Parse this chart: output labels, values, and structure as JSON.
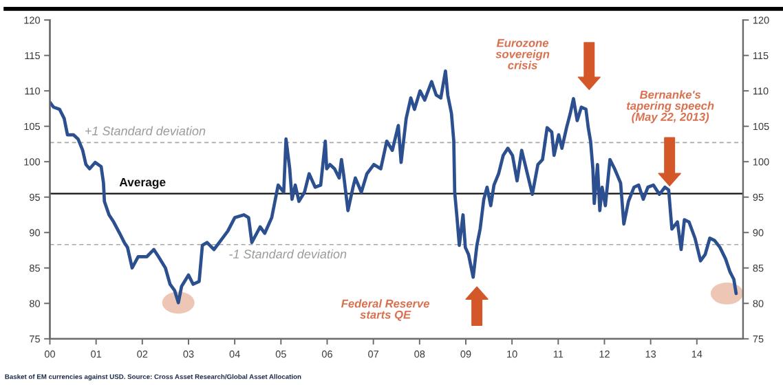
{
  "chart_data": {
    "type": "line",
    "x": [
      2000.0,
      2000.08,
      2000.21,
      2000.31,
      2000.38,
      2000.51,
      2000.61,
      2000.71,
      2000.78,
      2000.86,
      2000.98,
      2001.11,
      2001.16,
      2001.18,
      2001.28,
      2001.38,
      2001.51,
      2001.61,
      2001.68,
      2001.78,
      2001.91,
      2002.1,
      2002.25,
      2002.35,
      2002.5,
      2002.6,
      2002.7,
      2002.78,
      2002.85,
      2003.0,
      2003.1,
      2003.23,
      2003.3,
      2003.4,
      2003.55,
      2003.7,
      2003.85,
      2004.0,
      2004.2,
      2004.3,
      2004.37,
      2004.55,
      2004.65,
      2004.8,
      2004.94,
      2005.06,
      2005.11,
      2005.19,
      2005.24,
      2005.31,
      2005.39,
      2005.51,
      2005.61,
      2005.74,
      2005.86,
      2005.96,
      2005.99,
      2006.06,
      2006.16,
      2006.26,
      2006.31,
      2006.36,
      2006.45,
      2006.56,
      2006.61,
      2006.74,
      2006.86,
      2007.01,
      2007.16,
      2007.29,
      2007.41,
      2007.54,
      2007.6,
      2007.71,
      2007.81,
      2007.89,
      2008.01,
      2008.11,
      2008.26,
      2008.36,
      2008.46,
      2008.56,
      2008.61,
      2008.69,
      2008.74,
      2008.76,
      2008.81,
      2008.86,
      2008.94,
      2008.99,
      2009.06,
      2009.16,
      2009.24,
      2009.31,
      2009.39,
      2009.46,
      2009.54,
      2009.61,
      2009.71,
      2009.81,
      2009.91,
      2010.01,
      2010.11,
      2010.21,
      2010.44,
      2010.56,
      2010.66,
      2010.76,
      2010.86,
      2010.91,
      2011.01,
      2011.08,
      2011.18,
      2011.26,
      2011.33,
      2011.41,
      2011.5,
      2011.6,
      2011.65,
      2011.7,
      2011.75,
      2011.78,
      2011.85,
      2011.9,
      2011.95,
      2012.02,
      2012.12,
      2012.22,
      2012.35,
      2012.42,
      2012.52,
      2012.64,
      2012.74,
      2012.84,
      2012.94,
      2013.06,
      2013.19,
      2013.31,
      2013.39,
      2013.46,
      2013.58,
      2013.66,
      2013.73,
      2013.83,
      2013.96,
      2014.08,
      2014.18,
      2014.28,
      2014.38,
      2014.5,
      2014.62,
      2014.72,
      2014.8,
      2014.85
    ],
    "series": [
      {
        "color": "#2b4f8f",
        "values": [
          108.4,
          107.7,
          107.4,
          106.1,
          103.8,
          103.8,
          103.2,
          101.6,
          99.6,
          99.0,
          99.9,
          99.3,
          97.0,
          94.4,
          92.5,
          91.5,
          89.9,
          88.6,
          87.9,
          85.0,
          86.6,
          86.6,
          87.6,
          86.6,
          85.0,
          82.7,
          81.8,
          80.1,
          82.4,
          84.0,
          82.7,
          83.1,
          88.2,
          88.6,
          87.6,
          88.9,
          90.2,
          92.1,
          92.5,
          92.1,
          88.6,
          90.8,
          89.9,
          92.1,
          96.7,
          95.7,
          103.2,
          99.0,
          94.7,
          96.7,
          94.4,
          95.7,
          98.3,
          96.4,
          96.7,
          102.9,
          99.0,
          99.6,
          99.0,
          97.7,
          100.3,
          98.0,
          93.1,
          96.4,
          97.7,
          95.7,
          98.3,
          99.6,
          99.0,
          102.9,
          101.6,
          105.1,
          99.9,
          106.1,
          109.0,
          107.4,
          110.0,
          108.7,
          111.3,
          109.4,
          109.0,
          112.8,
          109.4,
          106.8,
          102.9,
          95.7,
          92.1,
          88.2,
          92.5,
          87.9,
          86.9,
          83.7,
          88.2,
          90.5,
          94.7,
          96.4,
          93.8,
          96.7,
          98.3,
          100.9,
          101.9,
          100.9,
          97.3,
          101.6,
          95.4,
          99.6,
          100.3,
          104.8,
          104.2,
          100.9,
          103.8,
          101.9,
          104.8,
          106.8,
          108.9,
          105.8,
          107.7,
          107.4,
          104.8,
          102.9,
          99.0,
          94.1,
          99.6,
          93.1,
          96.4,
          93.8,
          100.3,
          99.0,
          97.0,
          91.2,
          94.4,
          96.4,
          96.7,
          94.7,
          96.4,
          96.7,
          95.4,
          96.4,
          96.0,
          90.5,
          91.5,
          87.6,
          91.8,
          91.5,
          89.2,
          86.0,
          86.9,
          89.2,
          88.9,
          87.9,
          86.3,
          84.4,
          83.4,
          81.4
        ]
      }
    ],
    "xlim": [
      2000,
      2015
    ],
    "xticks": [
      {
        "value": 2000,
        "label": "00"
      },
      {
        "value": 2001,
        "label": "01"
      },
      {
        "value": 2002,
        "label": "02"
      },
      {
        "value": 2003,
        "label": "03"
      },
      {
        "value": 2004,
        "label": "04"
      },
      {
        "value": 2005,
        "label": "05"
      },
      {
        "value": 2006,
        "label": "06"
      },
      {
        "value": 2007,
        "label": "07"
      },
      {
        "value": 2008,
        "label": "08"
      },
      {
        "value": 2009,
        "label": "09"
      },
      {
        "value": 2010,
        "label": "10"
      },
      {
        "value": 2011,
        "label": "11"
      },
      {
        "value": 2012,
        "label": "12"
      },
      {
        "value": 2013,
        "label": "13"
      },
      {
        "value": 2014,
        "label": "14"
      }
    ],
    "ylim": [
      75,
      120
    ],
    "yticks": [
      75,
      80,
      85,
      90,
      95,
      100,
      105,
      110,
      115,
      120
    ],
    "y2lim": [
      75,
      120
    ],
    "y2ticks": [
      75,
      80,
      85,
      90,
      95,
      100,
      105,
      110,
      115,
      120
    ],
    "ref_lines": [
      {
        "axis": "y",
        "value": 102.7,
        "label": "+1 Standard deviation",
        "color": "#a8a8a8",
        "line_style": "dashed"
      },
      {
        "axis": "y",
        "value": 95.5,
        "label": "Average",
        "color": "#111111",
        "line_style": "solid"
      },
      {
        "axis": "y",
        "value": 88.3,
        "label": "-1 Standard deviation",
        "color": "#a8a8a8",
        "line_style": "dashed"
      }
    ],
    "annotations": [
      "Federal Reserve\nstarts QE",
      "Eurozone\nsovereign\ncrisis",
      "Bernanke's\ntapering speech\n(May 22, 2013)",
      "Basket of EM currencies against USD. Source: Cross Asset Research/Global Asset Allocation"
    ]
  }
}
